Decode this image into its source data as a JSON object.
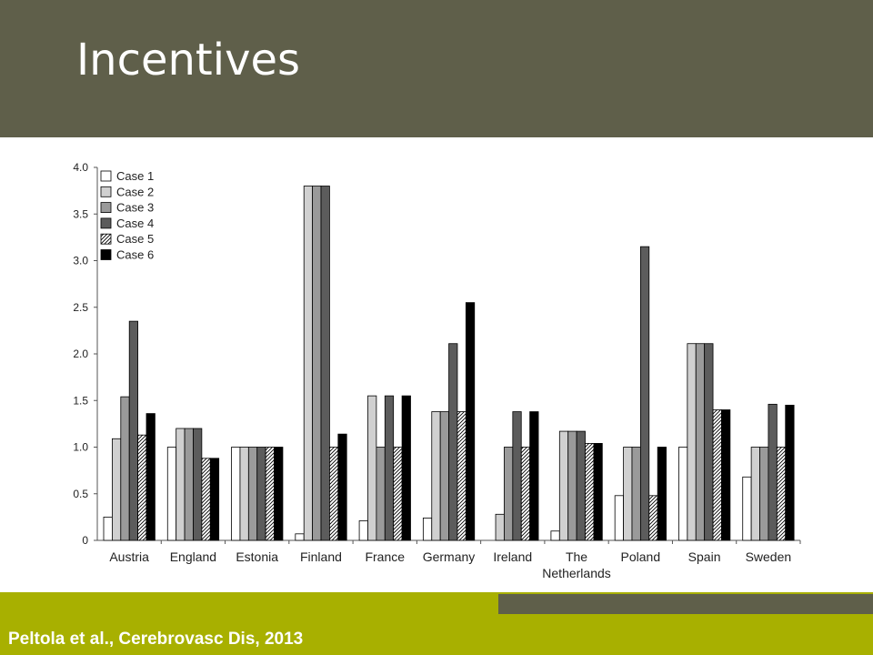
{
  "slide": {
    "title": "Incentives",
    "citation": "Peltola et al., Cerebrovasc Dis, 2013"
  },
  "colors": {
    "header_bg": "#5f5f4a",
    "footer_bg": "#a8b000",
    "footer_accent": "#5f5f4a"
  },
  "chart_data": {
    "type": "bar",
    "categories": [
      [
        "Austria"
      ],
      [
        "England"
      ],
      [
        "Estonia"
      ],
      [
        "Finland"
      ],
      [
        "France"
      ],
      [
        "Germany"
      ],
      [
        "Ireland"
      ],
      [
        "The",
        "Netherlands"
      ],
      [
        "Poland"
      ],
      [
        "Spain"
      ],
      [
        "Sweden"
      ]
    ],
    "series": [
      {
        "name": "Case 1",
        "fill": "#ffffff",
        "values": [
          0.25,
          1.0,
          1.0,
          0.07,
          0.21,
          0.24,
          0.0,
          0.1,
          0.48,
          1.0,
          0.68
        ]
      },
      {
        "name": "Case 2",
        "fill": "#d0d0d0",
        "values": [
          1.09,
          1.2,
          1.0,
          3.8,
          1.55,
          1.38,
          0.28,
          1.17,
          1.0,
          2.11,
          1.0
        ]
      },
      {
        "name": "Case 3",
        "fill": "#9a9a9a",
        "values": [
          1.54,
          1.2,
          1.0,
          3.8,
          1.0,
          1.38,
          1.0,
          1.17,
          1.0,
          2.11,
          1.0
        ]
      },
      {
        "name": "Case 4",
        "fill": "#5c5c5c",
        "values": [
          2.35,
          1.2,
          1.0,
          3.8,
          1.55,
          2.11,
          1.38,
          1.17,
          3.15,
          2.11,
          1.46
        ]
      },
      {
        "name": "Case 5",
        "fill": "hatch",
        "values": [
          1.13,
          0.88,
          1.0,
          1.0,
          1.0,
          1.38,
          1.0,
          1.04,
          0.48,
          1.4,
          1.0
        ]
      },
      {
        "name": "Case 6",
        "fill": "#000000",
        "values": [
          1.36,
          0.88,
          1.0,
          1.14,
          1.55,
          2.55,
          1.38,
          1.04,
          1.0,
          1.4,
          1.45
        ]
      }
    ],
    "yticks": [
      "0",
      "0.5",
      "1.0",
      "1.5",
      "2.0",
      "2.5",
      "3.0",
      "3.5",
      "4.0"
    ],
    "ylim": [
      0,
      4
    ],
    "grid": false,
    "legend": "top-left"
  }
}
